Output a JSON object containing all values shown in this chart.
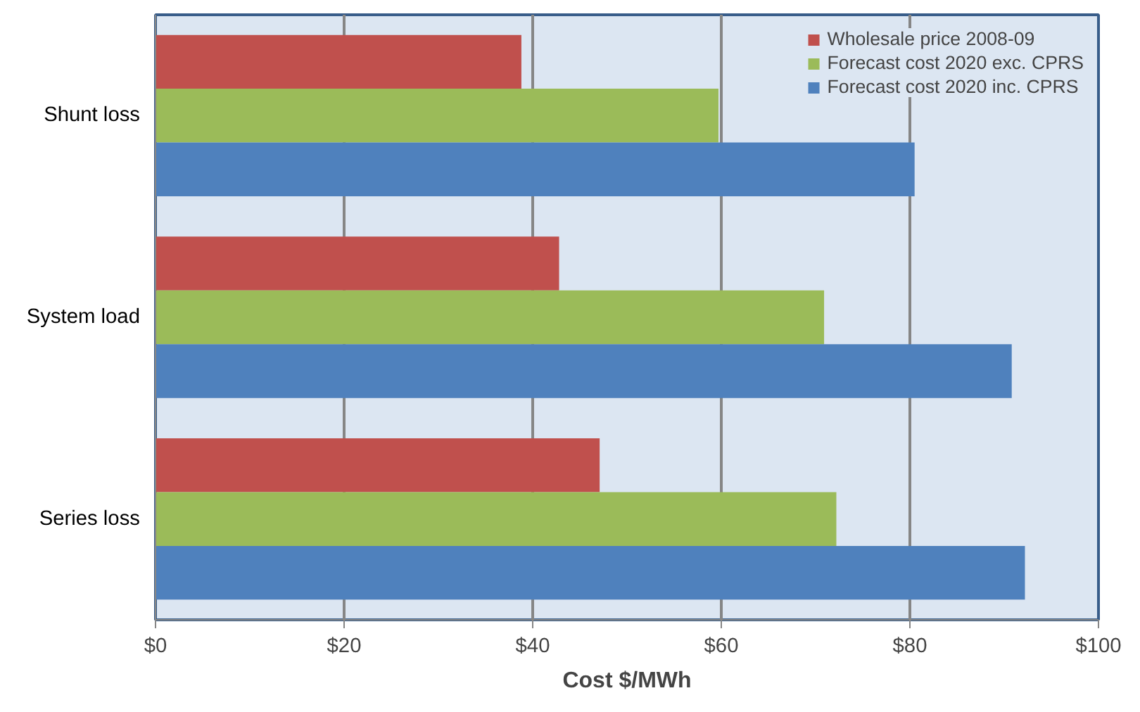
{
  "chart_data": {
    "type": "bar",
    "orientation": "horizontal",
    "xlabel": "Cost $/MWh",
    "categories": [
      "Shunt loss",
      "System load",
      "Series loss"
    ],
    "series": [
      {
        "name": "Wholesale price 2008-09",
        "color": "#c0504d",
        "values": [
          38.8,
          42.8,
          47.1
        ]
      },
      {
        "name": "Forecast cost 2020 exc. CPRS",
        "color": "#9bbb59",
        "values": [
          59.7,
          70.9,
          72.2
        ]
      },
      {
        "name": "Forecast cost 2020 inc. CPRS",
        "color": "#4f81bd",
        "values": [
          80.5,
          90.8,
          92.2
        ]
      }
    ],
    "xlim": [
      0,
      100
    ],
    "xticks": [
      {
        "value": 0,
        "label": "$0"
      },
      {
        "value": 20,
        "label": "$20"
      },
      {
        "value": 40,
        "label": "$40"
      },
      {
        "value": 60,
        "label": "$60"
      },
      {
        "value": 80,
        "label": "$80"
      },
      {
        "value": 100,
        "label": "$100"
      }
    ],
    "grid": "x",
    "legend": "top right"
  }
}
